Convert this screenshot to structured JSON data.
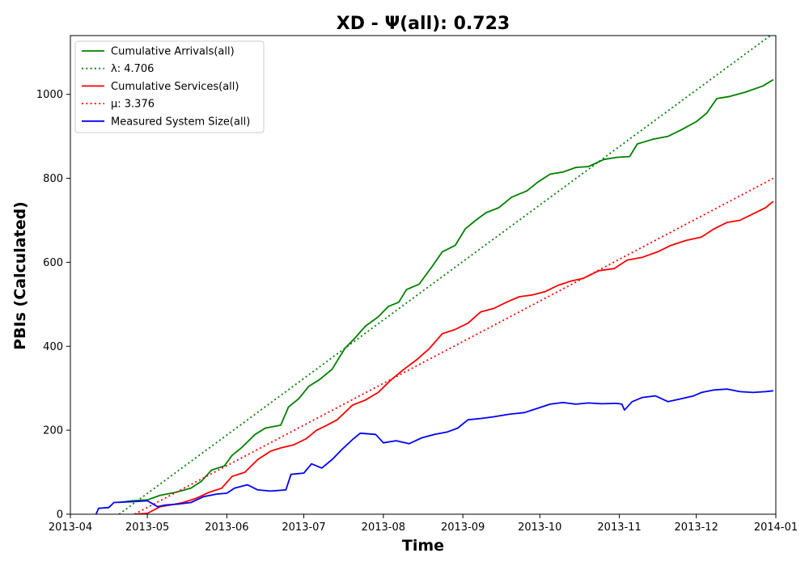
{
  "chart_data": {
    "type": "line",
    "title": "XD -  Ψ(all): 0.723",
    "xlabel": "Time",
    "ylabel": "PBIs (Calculated)",
    "x_type": "date",
    "xlim": [
      "2013-04-01",
      "2014-01-01"
    ],
    "ylim": [
      0,
      1140
    ],
    "xticks": [
      "2013-04",
      "2013-05",
      "2013-06",
      "2013-07",
      "2013-08",
      "2013-09",
      "2013-10",
      "2013-11",
      "2013-12",
      "2014-01"
    ],
    "yticks": [
      0,
      200,
      400,
      600,
      800,
      1000
    ],
    "grid": false,
    "legend_position": "upper-left",
    "series": [
      {
        "name": "Cumulative Arrivals(all)",
        "color": "#008000",
        "style": "solid",
        "points": [
          [
            "2013-04-20",
            28
          ],
          [
            "2013-04-25",
            32
          ],
          [
            "2013-05-01",
            34
          ],
          [
            "2013-05-06",
            45
          ],
          [
            "2013-05-12",
            52
          ],
          [
            "2013-05-18",
            62
          ],
          [
            "2013-05-22",
            78
          ],
          [
            "2013-05-26",
            105
          ],
          [
            "2013-05-31",
            115
          ],
          [
            "2013-06-03",
            140
          ],
          [
            "2013-06-07",
            160
          ],
          [
            "2013-06-12",
            190
          ],
          [
            "2013-06-16",
            205
          ],
          [
            "2013-06-22",
            212
          ],
          [
            "2013-06-25",
            255
          ],
          [
            "2013-06-29",
            275
          ],
          [
            "2013-07-03",
            305
          ],
          [
            "2013-07-07",
            320
          ],
          [
            "2013-07-12",
            345
          ],
          [
            "2013-07-17",
            395
          ],
          [
            "2013-07-21",
            420
          ],
          [
            "2013-07-25",
            448
          ],
          [
            "2013-07-30",
            470
          ],
          [
            "2013-08-03",
            495
          ],
          [
            "2013-08-07",
            505
          ],
          [
            "2013-08-10",
            535
          ],
          [
            "2013-08-15",
            548
          ],
          [
            "2013-08-20",
            590
          ],
          [
            "2013-08-24",
            625
          ],
          [
            "2013-08-29",
            640
          ],
          [
            "2013-09-02",
            680
          ],
          [
            "2013-09-06",
            700
          ],
          [
            "2013-09-10",
            718
          ],
          [
            "2013-09-15",
            730
          ],
          [
            "2013-09-20",
            755
          ],
          [
            "2013-09-26",
            770
          ],
          [
            "2013-09-30",
            790
          ],
          [
            "2013-10-05",
            810
          ],
          [
            "2013-10-10",
            815
          ],
          [
            "2013-10-15",
            826
          ],
          [
            "2013-10-20",
            828
          ],
          [
            "2013-10-26",
            845
          ],
          [
            "2013-10-31",
            850
          ],
          [
            "2013-11-05",
            852
          ],
          [
            "2013-11-08",
            882
          ],
          [
            "2013-11-14",
            893
          ],
          [
            "2013-11-20",
            900
          ],
          [
            "2013-11-25",
            915
          ],
          [
            "2013-12-01",
            935
          ],
          [
            "2013-12-05",
            955
          ],
          [
            "2013-12-09",
            990
          ],
          [
            "2013-12-14",
            995
          ],
          [
            "2013-12-20",
            1005
          ],
          [
            "2013-12-27",
            1020
          ],
          [
            "2013-12-31",
            1035
          ]
        ]
      },
      {
        "name": "λ: 4.706",
        "color": "#008000",
        "style": "dotted",
        "points": [
          [
            "2013-04-20",
            0
          ],
          [
            "2013-12-31",
            1145
          ]
        ]
      },
      {
        "name": "Cumulative Services(all)",
        "color": "#ff0000",
        "style": "solid",
        "points": [
          [
            "2013-04-26",
            0
          ],
          [
            "2013-05-01",
            2
          ],
          [
            "2013-05-06",
            18
          ],
          [
            "2013-05-10",
            22
          ],
          [
            "2013-05-15",
            28
          ],
          [
            "2013-05-20",
            38
          ],
          [
            "2013-05-25",
            52
          ],
          [
            "2013-05-30",
            62
          ],
          [
            "2013-06-03",
            90
          ],
          [
            "2013-06-08",
            100
          ],
          [
            "2013-06-13",
            130
          ],
          [
            "2013-06-18",
            150
          ],
          [
            "2013-06-22",
            158
          ],
          [
            "2013-06-27",
            165
          ],
          [
            "2013-07-02",
            180
          ],
          [
            "2013-07-06",
            200
          ],
          [
            "2013-07-10",
            212
          ],
          [
            "2013-07-14",
            225
          ],
          [
            "2013-07-20",
            260
          ],
          [
            "2013-07-25",
            272
          ],
          [
            "2013-07-30",
            290
          ],
          [
            "2013-08-04",
            320
          ],
          [
            "2013-08-09",
            345
          ],
          [
            "2013-08-14",
            368
          ],
          [
            "2013-08-19",
            395
          ],
          [
            "2013-08-24",
            430
          ],
          [
            "2013-08-29",
            440
          ],
          [
            "2013-09-03",
            455
          ],
          [
            "2013-09-08",
            482
          ],
          [
            "2013-09-13",
            490
          ],
          [
            "2013-09-18",
            505
          ],
          [
            "2013-09-23",
            518
          ],
          [
            "2013-09-28",
            522
          ],
          [
            "2013-10-03",
            530
          ],
          [
            "2013-10-08",
            545
          ],
          [
            "2013-10-13",
            555
          ],
          [
            "2013-10-18",
            562
          ],
          [
            "2013-10-24",
            580
          ],
          [
            "2013-10-30",
            585
          ],
          [
            "2013-11-04",
            605
          ],
          [
            "2013-11-10",
            612
          ],
          [
            "2013-11-16",
            625
          ],
          [
            "2013-11-21",
            640
          ],
          [
            "2013-11-27",
            652
          ],
          [
            "2013-12-03",
            660
          ],
          [
            "2013-12-08",
            680
          ],
          [
            "2013-12-13",
            695
          ],
          [
            "2013-12-18",
            700
          ],
          [
            "2013-12-23",
            715
          ],
          [
            "2013-12-28",
            730
          ],
          [
            "2013-12-31",
            745
          ]
        ]
      },
      {
        "name": "μ: 3.376",
        "color": "#ff0000",
        "style": "dotted",
        "points": [
          [
            "2013-04-26",
            0
          ],
          [
            "2013-12-31",
            800
          ]
        ]
      },
      {
        "name": "Measured System Size(all)",
        "color": "#0000ff",
        "style": "solid",
        "points": [
          [
            "2013-04-11",
            0
          ],
          [
            "2013-04-12",
            14
          ],
          [
            "2013-04-16",
            16
          ],
          [
            "2013-04-18",
            28
          ],
          [
            "2013-04-26",
            30
          ],
          [
            "2013-05-01",
            32
          ],
          [
            "2013-05-05",
            18
          ],
          [
            "2013-05-08",
            22
          ],
          [
            "2013-05-13",
            24
          ],
          [
            "2013-05-18",
            28
          ],
          [
            "2013-05-23",
            42
          ],
          [
            "2013-05-28",
            48
          ],
          [
            "2013-06-01",
            50
          ],
          [
            "2013-06-04",
            62
          ],
          [
            "2013-06-09",
            70
          ],
          [
            "2013-06-13",
            58
          ],
          [
            "2013-06-18",
            55
          ],
          [
            "2013-06-24",
            58
          ],
          [
            "2013-06-26",
            95
          ],
          [
            "2013-07-01",
            98
          ],
          [
            "2013-07-04",
            120
          ],
          [
            "2013-07-08",
            110
          ],
          [
            "2013-07-12",
            130
          ],
          [
            "2013-07-16",
            155
          ],
          [
            "2013-07-20",
            178
          ],
          [
            "2013-07-23",
            193
          ],
          [
            "2013-07-29",
            190
          ],
          [
            "2013-08-01",
            170
          ],
          [
            "2013-08-06",
            175
          ],
          [
            "2013-08-11",
            168
          ],
          [
            "2013-08-16",
            182
          ],
          [
            "2013-08-21",
            190
          ],
          [
            "2013-08-26",
            196
          ],
          [
            "2013-08-30",
            205
          ],
          [
            "2013-09-03",
            225
          ],
          [
            "2013-09-08",
            228
          ],
          [
            "2013-09-13",
            232
          ],
          [
            "2013-09-19",
            238
          ],
          [
            "2013-09-25",
            242
          ],
          [
            "2013-09-30",
            252
          ],
          [
            "2013-10-05",
            262
          ],
          [
            "2013-10-10",
            266
          ],
          [
            "2013-10-15",
            262
          ],
          [
            "2013-10-20",
            265
          ],
          [
            "2013-10-25",
            263
          ],
          [
            "2013-10-31",
            264
          ],
          [
            "2013-11-02",
            262
          ],
          [
            "2013-11-03",
            248
          ],
          [
            "2013-11-06",
            268
          ],
          [
            "2013-11-10",
            278
          ],
          [
            "2013-11-15",
            282
          ],
          [
            "2013-11-20",
            268
          ],
          [
            "2013-11-25",
            275
          ],
          [
            "2013-11-30",
            282
          ],
          [
            "2013-12-03",
            290
          ],
          [
            "2013-12-08",
            296
          ],
          [
            "2013-12-13",
            298
          ],
          [
            "2013-12-18",
            292
          ],
          [
            "2013-12-23",
            290
          ],
          [
            "2013-12-28",
            292
          ],
          [
            "2013-12-31",
            294
          ]
        ]
      }
    ]
  }
}
